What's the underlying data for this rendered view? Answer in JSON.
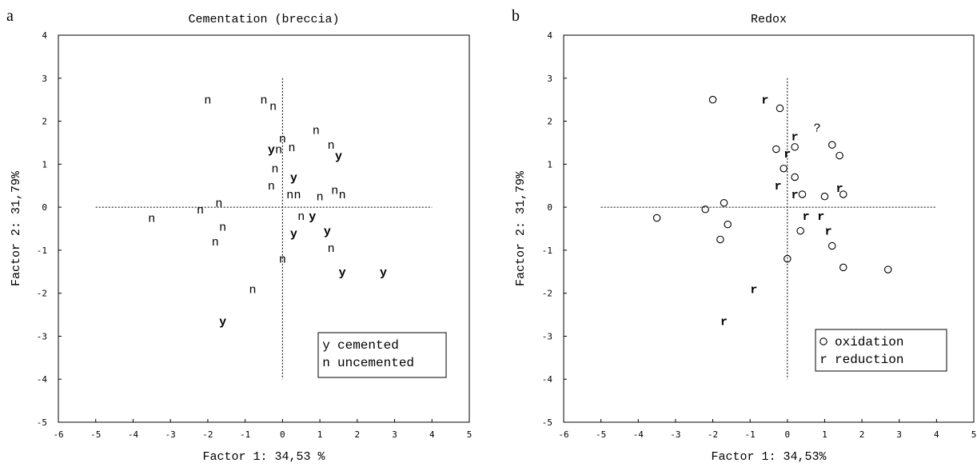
{
  "chart_data": [
    {
      "type": "scatter",
      "panel_label": "a",
      "title": "Cementation (breccia)",
      "xlabel": "Factor 1: 34,53 %",
      "ylabel": "Factor 2: 31,79%",
      "xlim": [
        -6,
        5
      ],
      "ylim": [
        -5,
        4
      ],
      "xticks": [
        -6,
        -5,
        -4,
        -3,
        -2,
        -1,
        0,
        1,
        2,
        3,
        4,
        5
      ],
      "yticks": [
        -5,
        -4,
        -3,
        -2,
        -1,
        0,
        1,
        2,
        3,
        4
      ],
      "reference_lines": {
        "x": 0,
        "y": 0,
        "x_range": [
          -5,
          4
        ],
        "y_range": [
          -4,
          3
        ]
      },
      "legend": {
        "position": "bottom-right",
        "entries": [
          {
            "marker": "y",
            "label": "cemented"
          },
          {
            "marker": "n",
            "label": "uncemented"
          }
        ]
      },
      "series": [
        {
          "name": "cemented",
          "marker": "y",
          "style": "bold",
          "points": [
            [
              -0.3,
              1.35
            ],
            [
              0.3,
              0.7
            ],
            [
              1.5,
              1.2
            ],
            [
              0.8,
              -0.2
            ],
            [
              0.3,
              -0.6
            ],
            [
              1.2,
              -0.55
            ],
            [
              1.6,
              -1.5
            ],
            [
              2.7,
              -1.5
            ],
            [
              -1.6,
              -2.65
            ]
          ]
        },
        {
          "name": "uncemented",
          "marker": "n",
          "style": "regular",
          "points": [
            [
              -2.0,
              2.5
            ],
            [
              -0.5,
              2.5
            ],
            [
              -0.25,
              2.35
            ],
            [
              0.0,
              1.6
            ],
            [
              0.25,
              1.4
            ],
            [
              0.9,
              1.8
            ],
            [
              1.3,
              1.45
            ],
            [
              -0.1,
              1.35
            ],
            [
              -0.2,
              0.9
            ],
            [
              -0.3,
              0.5
            ],
            [
              0.2,
              0.3
            ],
            [
              0.4,
              0.3
            ],
            [
              1.0,
              0.25
            ],
            [
              1.4,
              0.4
            ],
            [
              1.6,
              0.3
            ],
            [
              -1.7,
              0.1
            ],
            [
              -2.2,
              -0.05
            ],
            [
              -3.5,
              -0.25
            ],
            [
              -1.6,
              -0.45
            ],
            [
              0.5,
              -0.2
            ],
            [
              -1.8,
              -0.8
            ],
            [
              1.3,
              -0.95
            ],
            [
              0.0,
              -1.2
            ],
            [
              -0.8,
              -1.9
            ]
          ]
        }
      ]
    },
    {
      "type": "scatter",
      "panel_label": "b",
      "title": "Redox",
      "xlabel": "Factor 1: 34,53%",
      "ylabel": "Factor 2: 31,79%",
      "xlim": [
        -6,
        5
      ],
      "ylim": [
        -5,
        4
      ],
      "xticks": [
        -6,
        -5,
        -4,
        -3,
        -2,
        -1,
        0,
        1,
        2,
        3,
        4,
        5
      ],
      "yticks": [
        -5,
        -4,
        -3,
        -2,
        -1,
        0,
        1,
        2,
        3,
        4
      ],
      "reference_lines": {
        "x": 0,
        "y": 0,
        "x_range": [
          -5,
          4
        ],
        "y_range": [
          -4,
          3
        ]
      },
      "legend": {
        "position": "bottom-right",
        "entries": [
          {
            "marker": "o",
            "label": "oxidation"
          },
          {
            "marker": "r",
            "label": "reduction"
          }
        ]
      },
      "series": [
        {
          "name": "oxidation",
          "marker": "o",
          "style": "circle",
          "points": [
            [
              -2.0,
              2.5
            ],
            [
              -0.2,
              2.3
            ],
            [
              1.2,
              1.45
            ],
            [
              0.2,
              1.4
            ],
            [
              -0.3,
              1.35
            ],
            [
              1.4,
              1.2
            ],
            [
              -0.1,
              0.9
            ],
            [
              0.2,
              0.7
            ],
            [
              0.4,
              0.3
            ],
            [
              1.0,
              0.25
            ],
            [
              1.5,
              0.3
            ],
            [
              -1.7,
              0.1
            ],
            [
              -2.2,
              -0.05
            ],
            [
              -3.5,
              -0.25
            ],
            [
              -1.6,
              -0.4
            ],
            [
              0.35,
              -0.55
            ],
            [
              -1.8,
              -0.75
            ],
            [
              1.2,
              -0.9
            ],
            [
              0.0,
              -1.2
            ],
            [
              1.5,
              -1.4
            ],
            [
              2.7,
              -1.45
            ]
          ]
        },
        {
          "name": "reduction",
          "marker": "r",
          "style": "bold",
          "points": [
            [
              -0.6,
              2.5
            ],
            [
              0.2,
              1.65
            ],
            [
              0.0,
              1.25
            ],
            [
              -0.25,
              0.5
            ],
            [
              0.2,
              0.3
            ],
            [
              1.4,
              0.45
            ],
            [
              0.5,
              -0.2
            ],
            [
              0.9,
              -0.2
            ],
            [
              1.1,
              -0.55
            ],
            [
              -0.9,
              -1.9
            ],
            [
              -1.7,
              -2.65
            ]
          ]
        },
        {
          "name": "",
          "marker": "?",
          "style": "regular",
          "points": [
            [
              0.8,
              1.85
            ]
          ]
        }
      ]
    }
  ]
}
